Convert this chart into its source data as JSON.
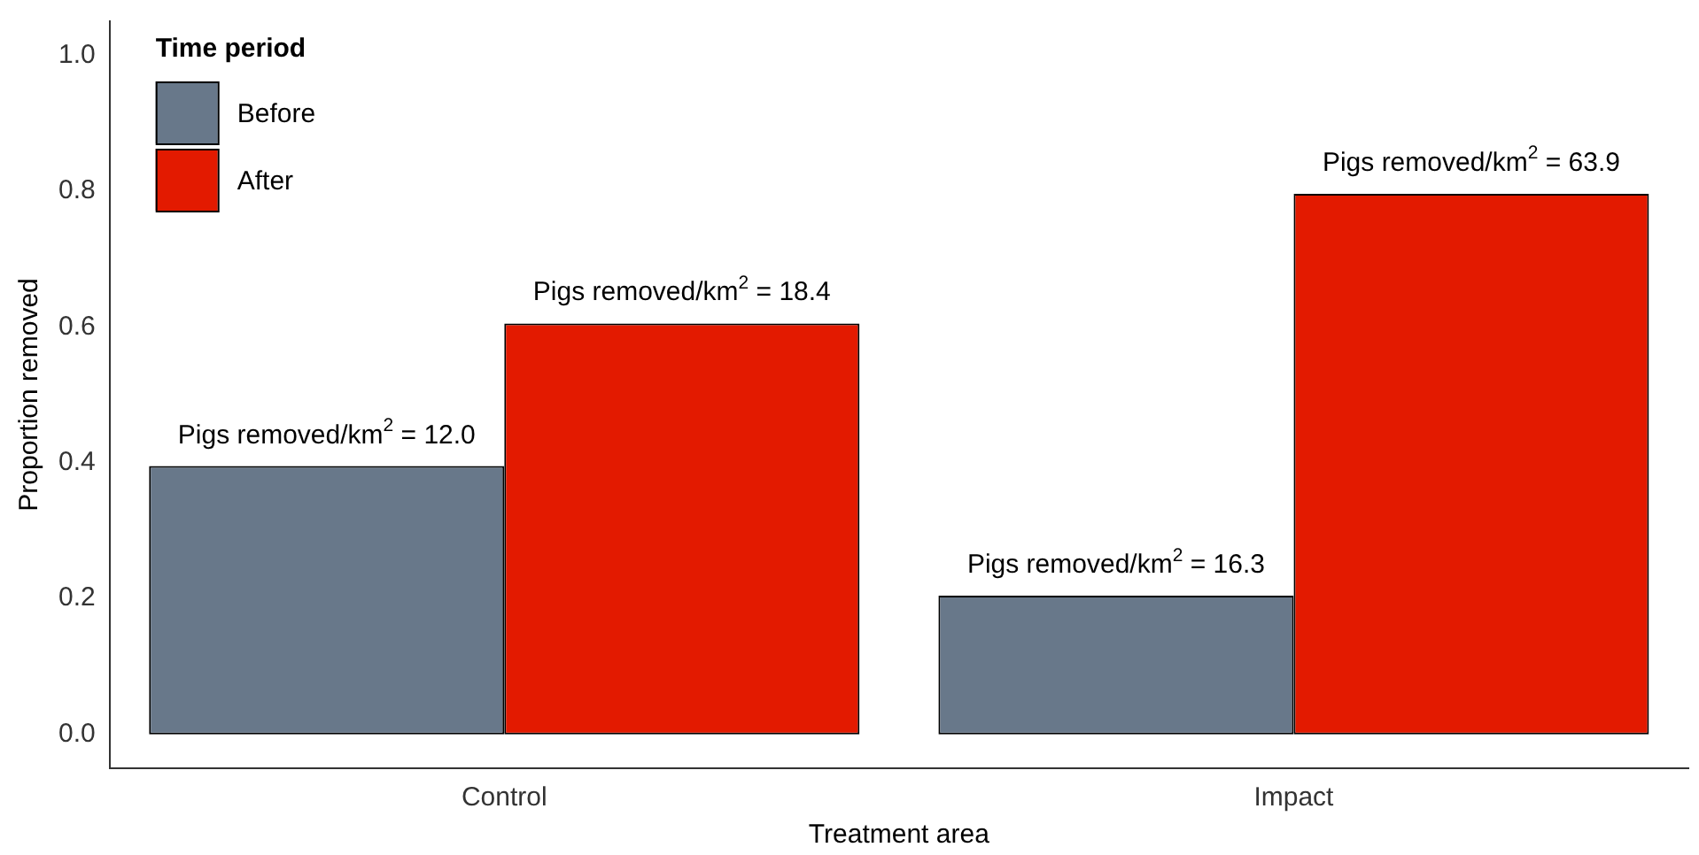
{
  "chart_data": {
    "type": "bar",
    "xlabel": "Treatment area",
    "ylabel": "Proportion removed",
    "legend_title": "Time period",
    "categories": [
      "Control",
      "Impact"
    ],
    "series": [
      {
        "name": "Before",
        "color": "#68788a",
        "values": [
          0.395,
          0.204
        ],
        "value_labels": [
          "Pigs removed/km$^{2}$ = 12.0",
          "Pigs removed/km$^{2}$ = 16.3"
        ]
      },
      {
        "name": "After",
        "color": "#e31a00",
        "values": [
          0.605,
          0.796
        ],
        "value_labels": [
          "Pigs removed/km$^{2}$ = 18.4",
          "Pigs removed/km$^{2}$ = 63.9"
        ]
      }
    ],
    "ylim": [
      -0.05,
      1.05
    ],
    "yticks": [
      {
        "value": 0,
        "label": "0.0"
      },
      {
        "value": 0.2,
        "label": "0.2"
      },
      {
        "value": 0.4,
        "label": "0.4"
      },
      {
        "value": 0.6,
        "label": "0.6"
      },
      {
        "value": 0.8,
        "label": "0.8"
      },
      {
        "value": 1,
        "label": "1.0"
      }
    ],
    "grid": false,
    "legend": "top left"
  }
}
